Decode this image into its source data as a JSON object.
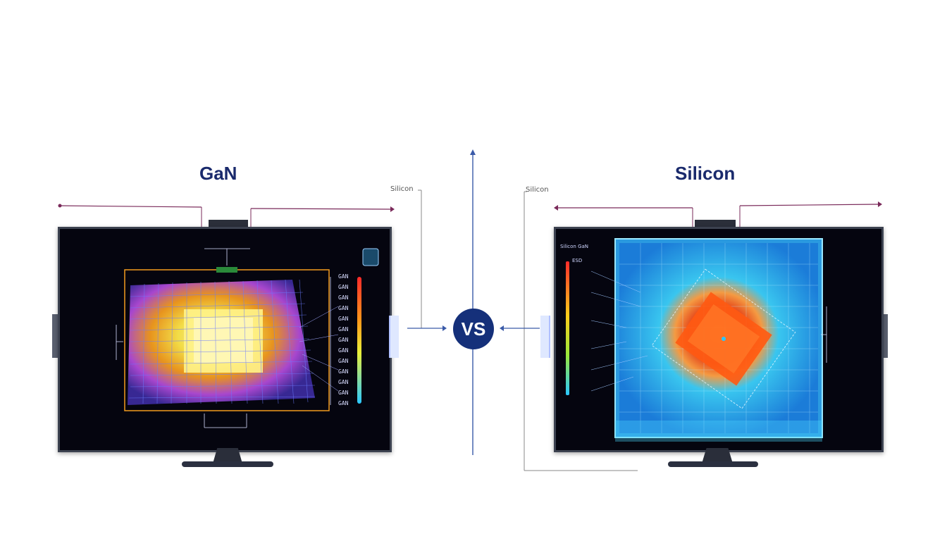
{
  "left": {
    "title": "GaN",
    "callout": "Silicon",
    "scale_labels": [
      "GAN",
      "GAN",
      "GAN",
      "GAN",
      "GAN",
      "GAN",
      "GAN",
      "GAN",
      "GAN",
      "GAN",
      "GAN",
      "GAN",
      "GAN"
    ],
    "colors": {
      "hot": "#ffe84a",
      "warm": "#f39b1e",
      "cool": "#8a38d8",
      "grid": "#4a5cff"
    }
  },
  "right": {
    "title": "Silicon",
    "callout": "Silicon",
    "header": "Silicon GaN",
    "subheader": "ESD",
    "colors": {
      "hot": "#f04a14",
      "warm": "#ff8a2a",
      "cool": "#2ab0e8",
      "grid": "#5ac8ff"
    }
  },
  "center": {
    "vs_label": "VS",
    "colors": {
      "badge": "#15307a",
      "divider": "#3a5aa8"
    }
  }
}
